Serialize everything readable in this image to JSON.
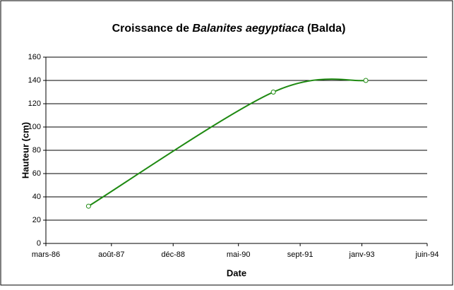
{
  "chart_data": {
    "type": "line",
    "title": [
      "Croissance de",
      "Balanites aegyptiaca",
      "(Balda)"
    ],
    "xlabel": "Date",
    "ylabel": "Hauteur (cm)",
    "x": [
      "1987-02",
      "1991-02",
      "1993-02"
    ],
    "series": [
      {
        "name": "Balanites aegyptiaca",
        "color": "#1f8a12",
        "values": [
          32,
          130,
          140
        ]
      }
    ],
    "smooth": true,
    "xlim": [
      "1986-03",
      "1994-06"
    ],
    "xticks": [
      {
        "value": "1986-03",
        "label": "mars-86"
      },
      {
        "value": "1987-08",
        "label": "août-87"
      },
      {
        "value": "1988-12",
        "label": "déc-88"
      },
      {
        "value": "1990-05",
        "label": "mai-90"
      },
      {
        "value": "1991-09",
        "label": "sept-91"
      },
      {
        "value": "1993-01",
        "label": "janv-93"
      },
      {
        "value": "1994-06",
        "label": "juin-94"
      }
    ],
    "ylim": [
      0,
      160
    ],
    "yticks": [
      0,
      20,
      40,
      60,
      80,
      100,
      120,
      140,
      160
    ],
    "grid": true
  }
}
